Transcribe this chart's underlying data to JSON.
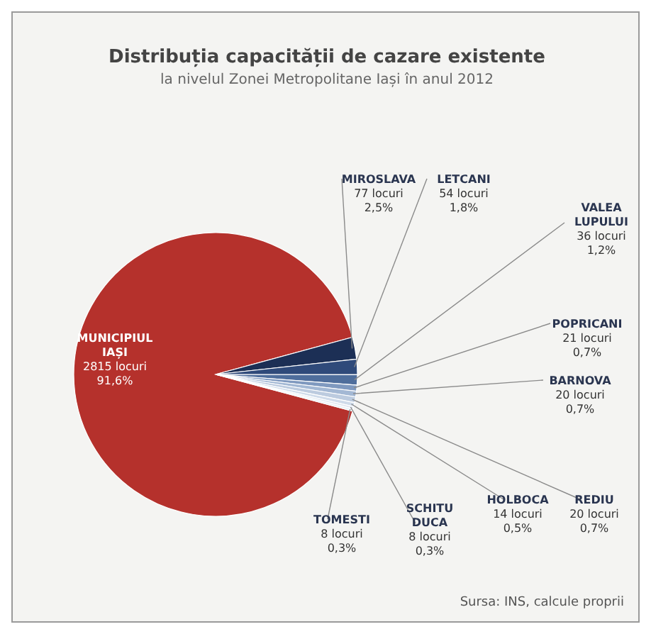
{
  "chart_data": {
    "type": "pie",
    "title": "Distribuția capacității de cazare existente",
    "subtitle": "la nivelul Zonei Metropolitane Iași în anul 2012",
    "categories": [
      "MUNICIPIUL IAȘI",
      "MIROSLAVA",
      "LETCANI",
      "VALEA LUPULUI",
      "POPRICANI",
      "BARNOVA",
      "REDIU",
      "HOLBOCA",
      "SCHITU DUCA",
      "TOMESTI"
    ],
    "values": [
      2815,
      77,
      54,
      36,
      21,
      20,
      20,
      14,
      8,
      8
    ],
    "value_labels": [
      "2815 locuri 91,6%",
      "77 locuri 2,5%",
      "54 locuri 1,8%",
      "36 locuri 1,2%",
      "21 locuri 0,7%",
      "20 locuri 0,7%",
      "20 locuri 0,7%",
      "14 locuri 0,5%",
      "8 locuri 0,3%",
      "8 locuri 0,3%"
    ],
    "colors": [
      "#b5312c",
      "#1c2f55",
      "#2f4a7a",
      "#4f6e9c",
      "#7f99bf",
      "#a3b8d4",
      "#bccbdf",
      "#cfdbea",
      "#dfe7f1",
      "#eaf0f6"
    ],
    "annotations": [
      "Sursa: INS, calcule proprii"
    ],
    "legend": false
  }
}
